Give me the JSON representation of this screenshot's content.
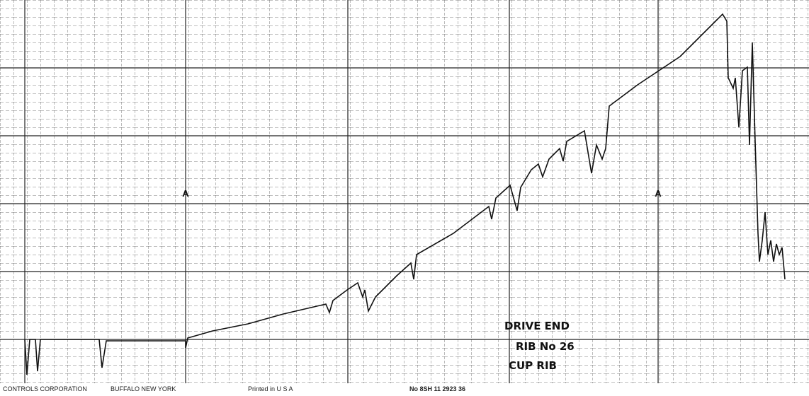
{
  "markers": [
    "A",
    "A"
  ],
  "annotation": [
    "DRIVE END",
    "RIB No 26",
    "CUP RIB"
  ],
  "footer": {
    "company": "CONTROLS CORPORATION",
    "city": "BUFFALO NEW YORK",
    "printed": "Printed in U S A",
    "number": "No 8SH 11 2923 36"
  }
}
